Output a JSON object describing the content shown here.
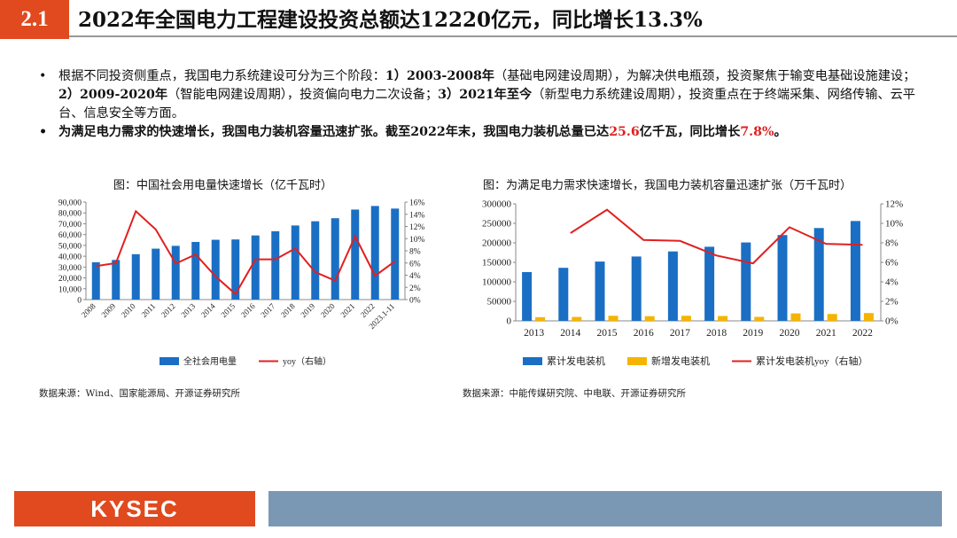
{
  "header": {
    "section_number": "2.1",
    "title": "2022年全国电力工程建设投资总额达12220亿元，同比增长13.3%"
  },
  "bullets": [
    {
      "marker": "•",
      "part1": "根据不同投资侧重点，我国电力系统建设可分为三个阶段：",
      "b1": "1）2003-2008年",
      "part2": "（基础电网建设周期），为解决供电瓶颈，投资聚焦于输变电基础设施建设；",
      "b2": "2）2009-2020年",
      "part3": "（智能电网建设周期），投资偏向电力二次设备；",
      "b3": "3）2021年至今",
      "part4": "（新型电力系统建设周期），投资重点在于终端采集、网络传输、云平台、信息安全等方面。"
    },
    {
      "marker": "•",
      "part1": "为满足电力需求的快速增长，我国电力装机容量迅速扩张。截至2022年末，我国电力装机总量已达",
      "hl1": "25.6",
      "part2": "亿千瓦，同比增长",
      "hl2": "7.8%",
      "part3": "。"
    }
  ],
  "chart1": {
    "caption": "图：中国社会用电量快速增长（亿千瓦时）",
    "source": "数据来源：Wind、国家能源局、开源证券研究所"
  },
  "chart2": {
    "caption": "图：为满足电力需求快速增长，我国电力装机容量迅速扩张（万千瓦时）",
    "source": "数据来源：中能传媒研究院、中电联、开源证券研究所"
  },
  "chart_data": [
    {
      "type": "bar",
      "title": "图：中国社会用电量快速增长（亿千瓦时）",
      "categories": [
        "2008",
        "2009",
        "2010",
        "2011",
        "2012",
        "2013",
        "2014",
        "2015",
        "2016",
        "2017",
        "2018",
        "2019",
        "2020",
        "2021",
        "2022",
        "2023.1-11"
      ],
      "series": [
        {
          "name": "全社会用电量",
          "kind": "bar",
          "axis": "left",
          "color": "#1a6fc4",
          "values": [
            34500,
            36600,
            41900,
            47000,
            49600,
            53200,
            55200,
            55500,
            59200,
            63100,
            68400,
            72300,
            75100,
            83100,
            86400,
            84000
          ]
        },
        {
          "name": "yoy（右轴）",
          "kind": "line",
          "axis": "right",
          "color": "#e02020",
          "values": [
            5.5,
            6.0,
            14.5,
            11.5,
            5.9,
            7.4,
            3.8,
            0.9,
            6.6,
            6.6,
            8.4,
            4.5,
            3.1,
            10.4,
            3.9,
            6.3
          ]
        }
      ],
      "ylim_left": [
        0,
        90000
      ],
      "yticks_left": [
        "0",
        "10,000",
        "20,000",
        "30,000",
        "40,000",
        "50,000",
        "60,000",
        "70,000",
        "80,000",
        "90,000"
      ],
      "ylim_right": [
        0,
        16
      ],
      "yticks_right": [
        "0%",
        "2%",
        "4%",
        "6%",
        "8%",
        "10%",
        "12%",
        "14%",
        "16%"
      ],
      "legend": "bottom",
      "grid": false
    },
    {
      "type": "bar",
      "title": "图：为满足电力需求快速增长，我国电力装机容量迅速扩张（万千瓦时）",
      "categories": [
        "2013",
        "2014",
        "2015",
        "2016",
        "2017",
        "2018",
        "2019",
        "2020",
        "2021",
        "2022"
      ],
      "series": [
        {
          "name": "累计发电装机",
          "kind": "bar",
          "axis": "left",
          "color": "#1a6fc4",
          "values": [
            125000,
            136000,
            152000,
            165000,
            178000,
            190000,
            201000,
            220000,
            238000,
            256000
          ]
        },
        {
          "name": "新增发电装机",
          "kind": "bar",
          "axis": "left",
          "color": "#f5b400",
          "values": [
            9400,
            10000,
            13000,
            12000,
            13000,
            12400,
            10200,
            19100,
            17600,
            20000
          ]
        },
        {
          "name": "累计发电装机yoy（右轴）",
          "kind": "line",
          "axis": "right",
          "color": "#e02020",
          "values": [
            null,
            9.0,
            11.4,
            8.3,
            8.2,
            6.7,
            5.9,
            9.6,
            7.9,
            7.8
          ]
        }
      ],
      "ylim_left": [
        0,
        300000
      ],
      "yticks_left": [
        "0",
        "50000",
        "100000",
        "150000",
        "200000",
        "250000",
        "300000"
      ],
      "ylim_right": [
        0,
        12
      ],
      "yticks_right": [
        "0%",
        "2%",
        "4%",
        "6%",
        "8%",
        "10%",
        "12%"
      ],
      "legend": "bottom",
      "grid": false
    }
  ],
  "footer": {
    "logo_text": "KYSEC",
    "accent": "#e04a1e",
    "bar_color": "#7a98b3"
  }
}
